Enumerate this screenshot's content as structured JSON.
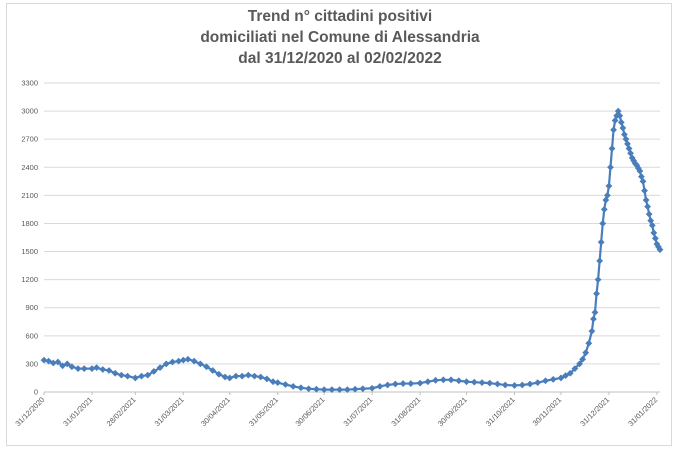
{
  "chart_data": {
    "type": "line",
    "title_lines": [
      "Trend n° cittadini positivi",
      "domiciliati nel Comune di Alessandria",
      "dal 31/12/2020 al 02/02/2022"
    ],
    "xlabel": "",
    "ylabel": "",
    "ylim": [
      0,
      3300
    ],
    "yticks": [
      "0",
      "300",
      "600",
      "900",
      "1200",
      "1500",
      "1800",
      "2100",
      "2400",
      "2700",
      "3000",
      "3300"
    ],
    "xtick_labels": [
      "31/12/2020",
      "31/01/2021",
      "28/02/2021",
      "31/03/2021",
      "30/04/2021",
      "31/05/2021",
      "30/06/2021",
      "31/07/2021",
      "31/08/2021",
      "30/09/2021",
      "31/10/2021",
      "30/11/2021",
      "31/12/2021",
      "31/01/2022"
    ],
    "grid": true,
    "line_color": "#4a7ebb",
    "x_range": [
      "2020-12-31",
      "2022-02-02"
    ],
    "series": [
      {
        "points": [
          [
            "2020-12-31",
            340
          ],
          [
            "2021-01-03",
            330
          ],
          [
            "2021-01-06",
            310
          ],
          [
            "2021-01-09",
            320
          ],
          [
            "2021-01-12",
            280
          ],
          [
            "2021-01-15",
            300
          ],
          [
            "2021-01-18",
            270
          ],
          [
            "2021-01-22",
            250
          ],
          [
            "2021-01-26",
            250
          ],
          [
            "2021-01-31",
            250
          ],
          [
            "2021-02-03",
            260
          ],
          [
            "2021-02-07",
            240
          ],
          [
            "2021-02-11",
            230
          ],
          [
            "2021-02-15",
            200
          ],
          [
            "2021-02-19",
            180
          ],
          [
            "2021-02-23",
            170
          ],
          [
            "2021-02-28",
            150
          ],
          [
            "2021-03-04",
            170
          ],
          [
            "2021-03-08",
            180
          ],
          [
            "2021-03-12",
            220
          ],
          [
            "2021-03-16",
            260
          ],
          [
            "2021-03-20",
            300
          ],
          [
            "2021-03-24",
            320
          ],
          [
            "2021-03-28",
            330
          ],
          [
            "2021-03-31",
            340
          ],
          [
            "2021-04-03",
            350
          ],
          [
            "2021-04-07",
            330
          ],
          [
            "2021-04-11",
            300
          ],
          [
            "2021-04-15",
            270
          ],
          [
            "2021-04-19",
            230
          ],
          [
            "2021-04-23",
            190
          ],
          [
            "2021-04-27",
            160
          ],
          [
            "2021-04-30",
            150
          ],
          [
            "2021-05-04",
            170
          ],
          [
            "2021-05-08",
            170
          ],
          [
            "2021-05-12",
            180
          ],
          [
            "2021-05-16",
            170
          ],
          [
            "2021-05-20",
            160
          ],
          [
            "2021-05-24",
            140
          ],
          [
            "2021-05-28",
            110
          ],
          [
            "2021-05-31",
            100
          ],
          [
            "2021-06-05",
            80
          ],
          [
            "2021-06-10",
            60
          ],
          [
            "2021-06-15",
            45
          ],
          [
            "2021-06-20",
            35
          ],
          [
            "2021-06-25",
            30
          ],
          [
            "2021-06-30",
            25
          ],
          [
            "2021-07-05",
            25
          ],
          [
            "2021-07-10",
            25
          ],
          [
            "2021-07-15",
            25
          ],
          [
            "2021-07-20",
            30
          ],
          [
            "2021-07-25",
            35
          ],
          [
            "2021-07-31",
            40
          ],
          [
            "2021-08-05",
            60
          ],
          [
            "2021-08-10",
            75
          ],
          [
            "2021-08-15",
            85
          ],
          [
            "2021-08-20",
            90
          ],
          [
            "2021-08-25",
            90
          ],
          [
            "2021-08-31",
            95
          ],
          [
            "2021-09-05",
            110
          ],
          [
            "2021-09-10",
            125
          ],
          [
            "2021-09-15",
            130
          ],
          [
            "2021-09-20",
            130
          ],
          [
            "2021-09-25",
            120
          ],
          [
            "2021-09-30",
            110
          ],
          [
            "2021-10-05",
            105
          ],
          [
            "2021-10-10",
            100
          ],
          [
            "2021-10-15",
            95
          ],
          [
            "2021-10-20",
            85
          ],
          [
            "2021-10-25",
            75
          ],
          [
            "2021-10-31",
            70
          ],
          [
            "2021-11-05",
            75
          ],
          [
            "2021-11-10",
            85
          ],
          [
            "2021-11-15",
            100
          ],
          [
            "2021-11-20",
            120
          ],
          [
            "2021-11-25",
            135
          ],
          [
            "2021-11-30",
            150
          ],
          [
            "2021-12-03",
            175
          ],
          [
            "2021-12-06",
            200
          ],
          [
            "2021-12-09",
            250
          ],
          [
            "2021-12-12",
            300
          ],
          [
            "2021-12-14",
            350
          ],
          [
            "2021-12-16",
            420
          ],
          [
            "2021-12-18",
            520
          ],
          [
            "2021-12-20",
            650
          ],
          [
            "2021-12-21",
            780
          ],
          [
            "2021-12-22",
            850
          ],
          [
            "2021-12-23",
            1050
          ],
          [
            "2021-12-24",
            1200
          ],
          [
            "2021-12-25",
            1400
          ],
          [
            "2021-12-26",
            1600
          ],
          [
            "2021-12-27",
            1800
          ],
          [
            "2021-12-28",
            1950
          ],
          [
            "2021-12-29",
            2050
          ],
          [
            "2021-12-30",
            2100
          ],
          [
            "2021-12-31",
            2200
          ],
          [
            "2022-01-01",
            2400
          ],
          [
            "2022-01-02",
            2600
          ],
          [
            "2022-01-03",
            2800
          ],
          [
            "2022-01-04",
            2900
          ],
          [
            "2022-01-05",
            2950
          ],
          [
            "2022-01-06",
            3000
          ],
          [
            "2022-01-07",
            2950
          ],
          [
            "2022-01-08",
            2880
          ],
          [
            "2022-01-09",
            2820
          ],
          [
            "2022-01-10",
            2750
          ],
          [
            "2022-01-11",
            2700
          ],
          [
            "2022-01-12",
            2650
          ],
          [
            "2022-01-13",
            2600
          ],
          [
            "2022-01-14",
            2550
          ],
          [
            "2022-01-15",
            2500
          ],
          [
            "2022-01-16",
            2470
          ],
          [
            "2022-01-17",
            2440
          ],
          [
            "2022-01-18",
            2420
          ],
          [
            "2022-01-19",
            2390
          ],
          [
            "2022-01-20",
            2360
          ],
          [
            "2022-01-21",
            2300
          ],
          [
            "2022-01-22",
            2250
          ],
          [
            "2022-01-23",
            2150
          ],
          [
            "2022-01-24",
            2050
          ],
          [
            "2022-01-25",
            1980
          ],
          [
            "2022-01-26",
            1900
          ],
          [
            "2022-01-27",
            1830
          ],
          [
            "2022-01-28",
            1780
          ],
          [
            "2022-01-29",
            1700
          ],
          [
            "2022-01-30",
            1640
          ],
          [
            "2022-01-31",
            1580
          ],
          [
            "2022-02-01",
            1550
          ],
          [
            "2022-02-02",
            1520
          ]
        ]
      }
    ]
  }
}
